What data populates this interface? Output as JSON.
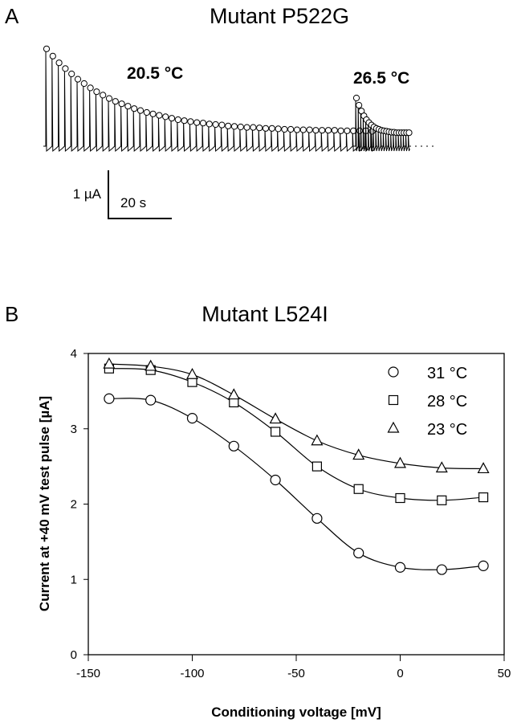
{
  "chart_data": [
    {
      "panel_label": "A",
      "type": "line",
      "title": "Mutant P522G",
      "scale_bar": {
        "current_label": "1 µA",
        "time_label": "20 s",
        "current_value_uA": 1,
        "time_value_s": 20
      },
      "series": [
        {
          "name": "20.5 °C",
          "pulse_interval_s": 2,
          "peak_current_uA": [
            2.02,
            1.87,
            1.73,
            1.61,
            1.5,
            1.39,
            1.3,
            1.21,
            1.13,
            1.06,
            0.99,
            0.93,
            0.88,
            0.83,
            0.78,
            0.74,
            0.7,
            0.67,
            0.64,
            0.61,
            0.58,
            0.55,
            0.53,
            0.51,
            0.49,
            0.48,
            0.46,
            0.45,
            0.44,
            0.42,
            0.41,
            0.4,
            0.39,
            0.39,
            0.38,
            0.37,
            0.37,
            0.36,
            0.35,
            0.35,
            0.34,
            0.34,
            0.34,
            0.33,
            0.33,
            0.33,
            0.33,
            0.32,
            0.32,
            0.32,
            0.32,
            0.32,
            0.31
          ]
        },
        {
          "name": "26.5 °C",
          "pulse_interval_s": 0.8,
          "peak_current_uA": [
            1.0,
            0.85,
            0.73,
            0.63,
            0.55,
            0.49,
            0.44,
            0.4,
            0.37,
            0.35,
            0.33,
            0.32,
            0.31,
            0.3,
            0.29,
            0.29,
            0.28,
            0.28,
            0.28,
            0.28,
            0.28,
            0.28
          ]
        }
      ]
    },
    {
      "panel_label": "B",
      "type": "line",
      "title": "Mutant L524I",
      "xlabel": "Conditioning voltage [mV]",
      "ylabel": "Current at +40 mV test pulse [µA]",
      "xlim": [
        -150,
        50
      ],
      "ylim": [
        0,
        4
      ],
      "xticks": [
        "-150",
        "-100",
        "-50",
        "0",
        "50"
      ],
      "yticks": [
        "0",
        "1",
        "2",
        "3",
        "4"
      ],
      "grid": false,
      "legend_position": "top-right",
      "x": [
        -140,
        -120,
        -100,
        -80,
        -60,
        -40,
        -20,
        0,
        20,
        40
      ],
      "series": [
        {
          "name": "31 °C",
          "marker": "circle",
          "values": [
            3.4,
            3.38,
            3.14,
            2.77,
            2.32,
            1.81,
            1.35,
            1.16,
            1.13,
            1.18
          ]
        },
        {
          "name": "28 °C",
          "marker": "square",
          "values": [
            3.8,
            3.78,
            3.62,
            3.35,
            2.96,
            2.5,
            2.2,
            2.08,
            2.05,
            2.09
          ]
        },
        {
          "name": "23 °C",
          "marker": "triangle",
          "values": [
            3.86,
            3.83,
            3.72,
            3.45,
            3.13,
            2.84,
            2.65,
            2.54,
            2.48,
            2.47
          ]
        }
      ]
    }
  ]
}
